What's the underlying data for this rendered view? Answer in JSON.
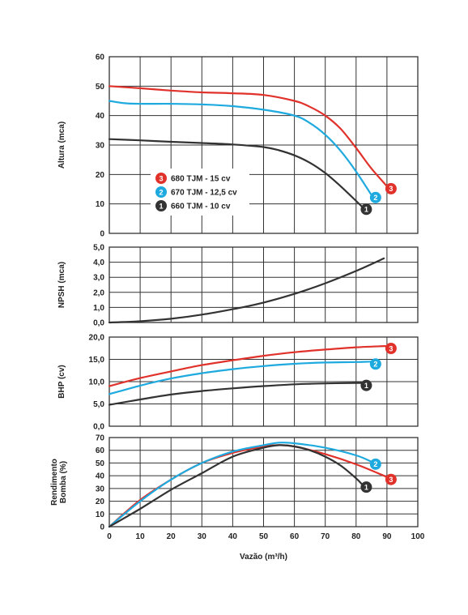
{
  "x_axis": {
    "label": "Vazão (m³/h)",
    "min": 0,
    "max": 100,
    "ticks": [
      "0",
      "10",
      "20",
      "30",
      "40",
      "50",
      "60",
      "70",
      "80",
      "90",
      "100"
    ]
  },
  "colors": {
    "c3": "#e0322b",
    "c2": "#1eaadf",
    "c1": "#333333",
    "grid": "#333333"
  },
  "chart_data": [
    {
      "type": "line",
      "ylabel": "Altura (mca)",
      "xlim": [
        0,
        100
      ],
      "ylim": [
        0,
        60
      ],
      "yticks": [
        "0",
        "10",
        "20",
        "30",
        "40",
        "50",
        "60"
      ],
      "legend": {
        "placement": "center-left",
        "entries": [
          {
            "number": "3",
            "label": "680 TJM - 15 cv"
          },
          {
            "number": "2",
            "label": "670 TJM - 12,5 cv"
          },
          {
            "number": "1",
            "label": "660 TJM - 10 cv"
          }
        ]
      },
      "series": [
        {
          "number": "3",
          "color_key": "c3",
          "end_marker": "3",
          "x": [
            0,
            10,
            20,
            30,
            40,
            50,
            60,
            65,
            70,
            75,
            80,
            85,
            90
          ],
          "y": [
            50,
            49.3,
            48.5,
            47.9,
            47.6,
            47,
            45,
            43,
            40,
            35.5,
            29,
            22,
            16
          ]
        },
        {
          "number": "2",
          "color_key": "c2",
          "end_marker": "2",
          "x": [
            0,
            5,
            10,
            20,
            30,
            40,
            50,
            60,
            65,
            70,
            75,
            80,
            85
          ],
          "y": [
            45,
            44.2,
            44,
            44,
            43.8,
            43.2,
            42,
            40,
            37.5,
            33.5,
            28,
            21,
            13
          ]
        },
        {
          "number": "1",
          "color_key": "c1",
          "end_marker": "1",
          "x": [
            0,
            10,
            20,
            30,
            40,
            50,
            55,
            60,
            65,
            70,
            75,
            80,
            82
          ],
          "y": [
            32,
            31.6,
            31.1,
            30.7,
            30.2,
            29.3,
            28.2,
            26.5,
            24,
            20.5,
            16,
            11,
            9
          ]
        }
      ]
    },
    {
      "type": "line",
      "ylabel": "NPSH (mca)",
      "xlim": [
        0,
        100
      ],
      "ylim": [
        0,
        5
      ],
      "yticks": [
        "0,0",
        "1,0",
        "2,0",
        "3,0",
        "4,0",
        "5,0"
      ],
      "series": [
        {
          "color_key": "c1",
          "end_marker": "",
          "x": [
            0,
            10,
            20,
            30,
            40,
            50,
            60,
            70,
            80,
            89
          ],
          "y": [
            0,
            0.08,
            0.25,
            0.52,
            0.88,
            1.32,
            1.9,
            2.6,
            3.42,
            4.25
          ]
        }
      ]
    },
    {
      "type": "line",
      "ylabel": "BHP (cv)",
      "xlim": [
        0,
        100
      ],
      "ylim": [
        0,
        20
      ],
      "yticks": [
        "0,0",
        "5,0",
        "10,0",
        "15,0",
        "20,0"
      ],
      "series": [
        {
          "number": "3",
          "color_key": "c3",
          "end_marker": "3",
          "x": [
            0,
            10,
            20,
            30,
            40,
            50,
            60,
            70,
            80,
            90
          ],
          "y": [
            9,
            10.8,
            12.3,
            13.7,
            14.8,
            15.8,
            16.6,
            17.2,
            17.7,
            18
          ]
        },
        {
          "number": "2",
          "color_key": "c2",
          "end_marker": "2",
          "x": [
            0,
            10,
            20,
            30,
            40,
            50,
            60,
            70,
            80,
            85
          ],
          "y": [
            7.2,
            9.1,
            10.7,
            11.9,
            12.8,
            13.5,
            14,
            14.3,
            14.4,
            14.5
          ]
        },
        {
          "number": "1",
          "color_key": "c1",
          "end_marker": "1",
          "x": [
            0,
            10,
            20,
            30,
            40,
            50,
            60,
            70,
            80,
            82
          ],
          "y": [
            4.8,
            6,
            7.1,
            7.9,
            8.5,
            9,
            9.4,
            9.6,
            9.7,
            9.7
          ]
        }
      ]
    },
    {
      "type": "line",
      "ylabel": "Rendimento Bomba (%)",
      "xlim": [
        0,
        100
      ],
      "ylim": [
        0,
        70
      ],
      "yticks": [
        "0",
        "10",
        "20",
        "30",
        "40",
        "50",
        "60",
        "70"
      ],
      "series": [
        {
          "number": "3",
          "color_key": "c3",
          "end_marker": "3",
          "x": [
            0,
            10,
            20,
            30,
            40,
            50,
            55,
            60,
            70,
            80,
            90
          ],
          "y": [
            0,
            21,
            37,
            50,
            58,
            63,
            64,
            63,
            57,
            49,
            39
          ]
        },
        {
          "number": "2",
          "color_key": "c2",
          "end_marker": "2",
          "x": [
            0,
            10,
            20,
            30,
            40,
            50,
            55,
            60,
            70,
            80,
            85
          ],
          "y": [
            0,
            20,
            37,
            50,
            59,
            64,
            66,
            65.5,
            62,
            56,
            51
          ]
        },
        {
          "number": "1",
          "color_key": "c1",
          "end_marker": "1",
          "x": [
            0,
            10,
            20,
            30,
            40,
            50,
            55,
            60,
            65,
            70,
            75,
            80,
            82
          ],
          "y": [
            0,
            14,
            29,
            42,
            55,
            62,
            64,
            63,
            60,
            55,
            48,
            38,
            33
          ]
        }
      ]
    }
  ]
}
